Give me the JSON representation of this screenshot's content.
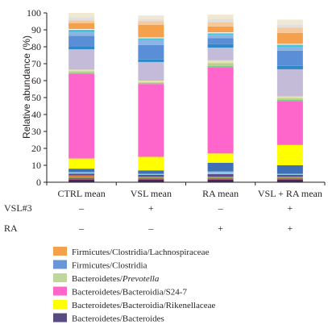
{
  "chart_data": {
    "type": "bar",
    "stacked": true,
    "ylabel": "Relative abundance (%)",
    "ylim": [
      0,
      100
    ],
    "yticks": [
      0,
      10,
      20,
      30,
      40,
      50,
      60,
      70,
      80,
      90,
      100
    ],
    "grid": false,
    "categories": [
      "CTRL mean",
      "VSL mean",
      "RA mean",
      "VSL + RA mean"
    ],
    "treatment_table": {
      "rows": [
        {
          "label": "VSL#3",
          "values": [
            "–",
            "+",
            "–",
            "+"
          ]
        },
        {
          "label": "RA",
          "values": [
            "–",
            "–",
            "+",
            "+"
          ]
        }
      ]
    },
    "segments": [
      {
        "color": "#3f2d5e",
        "values": [
          1.5,
          1.5,
          1.5,
          1.5
        ]
      },
      {
        "color": "#a04a70",
        "values": [
          1.0,
          0.8,
          0.8,
          0.8
        ]
      },
      {
        "color": "#7fa04a",
        "values": [
          0.8,
          0.5,
          0.5,
          0.5
        ]
      },
      {
        "color": "#e87f3a",
        "values": [
          0.7,
          0.5,
          0.5,
          0.5
        ]
      },
      {
        "color": "#5f4a8a",
        "values": [
          1.0,
          1.0,
          1.5,
          1.0
        ]
      },
      {
        "color": "#8cc8e4",
        "values": [
          1.0,
          0.7,
          1.5,
          0.7
        ]
      },
      {
        "color": "#3f6fb5",
        "values": [
          2.0,
          2.0,
          5.2,
          5.0
        ]
      },
      {
        "color": "#ffff00",
        "values": [
          6.0,
          8.0,
          5.5,
          12.0
        ]
      },
      {
        "color": "#ff66cc",
        "values": [
          50.0,
          43.0,
          51.0,
          26.0
        ]
      },
      {
        "color": "#7fc88a",
        "values": [
          0.5,
          0.5,
          0.6,
          0.7
        ]
      },
      {
        "color": "#b7d28f",
        "values": [
          1.0,
          0.5,
          1.8,
          1.0
        ]
      },
      {
        "color": "#e8e1b0",
        "values": [
          1.0,
          1.0,
          1.6,
          1.0
        ]
      },
      {
        "color": "#c4bbd8",
        "values": [
          12.0,
          11.0,
          7.5,
          16.0
        ]
      },
      {
        "color": "#2e88c7",
        "values": [
          1.5,
          1.5,
          2.0,
          2.0
        ]
      },
      {
        "color": "#5a8fd8",
        "values": [
          6.5,
          8.5,
          3.5,
          9.0
        ]
      },
      {
        "color": "#8ab4e4",
        "values": [
          2.0,
          3.0,
          2.0,
          2.0
        ]
      },
      {
        "color": "#49c2de",
        "values": [
          1.5,
          1.0,
          1.0,
          1.5
        ]
      },
      {
        "color": "#ffffff",
        "values": [
          0.5,
          0.5,
          0.5,
          0.5
        ]
      },
      {
        "color": "#f5a04a",
        "values": [
          3.5,
          7.5,
          3.5,
          6.5
        ]
      },
      {
        "color": "#f8c898",
        "values": [
          1.5,
          2.0,
          2.5,
          3.0
        ]
      },
      {
        "color": "#e0e0e0",
        "values": [
          2.0,
          1.5,
          2.0,
          2.0
        ]
      },
      {
        "color": "#f0e8d0",
        "values": [
          2.5,
          2.0,
          2.5,
          2.8
        ]
      }
    ],
    "legend": [
      {
        "color": "#f5a04a",
        "label": "Firmicutes/Clostridia/Lachnospiraceae",
        "prefix": "",
        "italic": ""
      },
      {
        "color": "#6a96d8",
        "label": "Firmicutes/Clostridia",
        "prefix": "",
        "italic": ""
      },
      {
        "color": "#bdd89a",
        "label": "",
        "prefix": "Bacteroidetes/",
        "italic": "Prevotella"
      },
      {
        "color": "#ff66cc",
        "label": "Bacteroidetes/Bacteroidia/S24-7",
        "prefix": "",
        "italic": ""
      },
      {
        "color": "#ffff00",
        "label": "Bacteroidetes/Bacteroidia/Rikenellaceae",
        "prefix": "",
        "italic": ""
      },
      {
        "color": "#5a4a82",
        "label": "Bacteroidetes/Bacteroides",
        "prefix": "",
        "italic": ""
      }
    ]
  }
}
